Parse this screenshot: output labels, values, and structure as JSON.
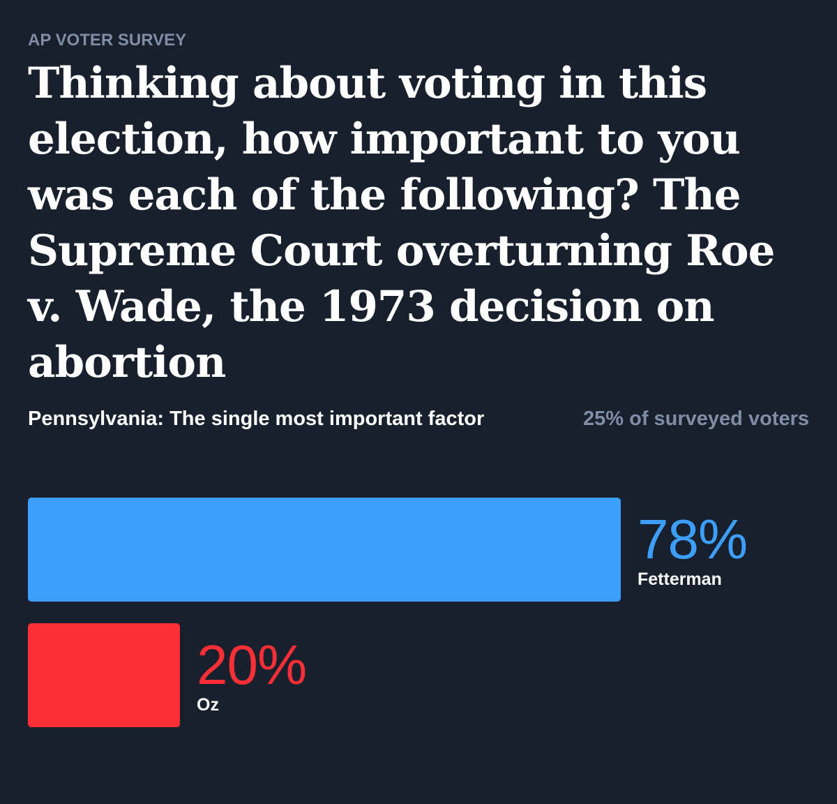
{
  "kicker": "AP VOTER SURVEY",
  "title": "Thinking about voting in this election, how important to you was each of the following? The Supreme Court overturning Roe v. Wade, the 1973 decision on abortion",
  "subtitle": "Pennsylvania: The single most important factor",
  "share_note": "25% of surveyed voters",
  "colors": {
    "background": "#18202d",
    "fetterman": "#3d9ffd",
    "oz": "#fc2f36",
    "muted": "#7f8ea6"
  },
  "chart_data": {
    "type": "bar",
    "orientation": "horizontal",
    "categories": [
      "Fetterman",
      "Oz"
    ],
    "values": [
      78,
      20
    ],
    "value_labels": [
      "78%",
      "20%"
    ],
    "unit": "%",
    "xlim": [
      0,
      100
    ],
    "grid": false,
    "title": "",
    "xlabel": "",
    "ylabel": ""
  }
}
